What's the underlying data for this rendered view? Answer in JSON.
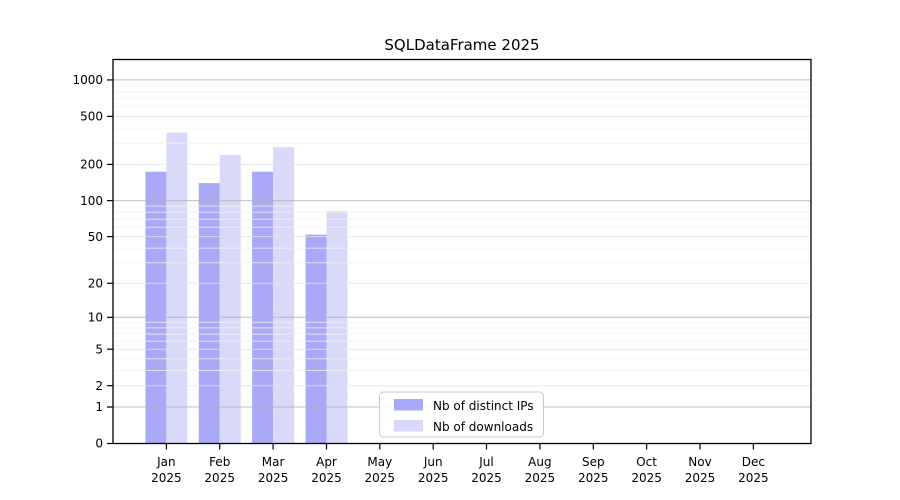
{
  "chart_data": {
    "type": "bar",
    "title": "SQLDataFrame 2025",
    "categories": [
      {
        "month": "Jan",
        "year": "2025"
      },
      {
        "month": "Feb",
        "year": "2025"
      },
      {
        "month": "Mar",
        "year": "2025"
      },
      {
        "month": "Apr",
        "year": "2025"
      },
      {
        "month": "May",
        "year": "2025"
      },
      {
        "month": "Jun",
        "year": "2025"
      },
      {
        "month": "Jul",
        "year": "2025"
      },
      {
        "month": "Aug",
        "year": "2025"
      },
      {
        "month": "Sep",
        "year": "2025"
      },
      {
        "month": "Oct",
        "year": "2025"
      },
      {
        "month": "Nov",
        "year": "2025"
      },
      {
        "month": "Dec",
        "year": "2025"
      }
    ],
    "series": [
      {
        "name": "Nb of distinct IPs",
        "color": "#a9a9f7",
        "values": [
          174,
          140,
          174,
          52,
          0,
          0,
          0,
          0,
          0,
          0,
          0,
          0
        ]
      },
      {
        "name": "Nb of downloads",
        "color": "#d9d9f9",
        "values": [
          366,
          240,
          278,
          82,
          0,
          0,
          0,
          0,
          0,
          0,
          0,
          0
        ]
      }
    ],
    "yscale": "log1p",
    "yticks": [
      0,
      1,
      2,
      5,
      10,
      20,
      50,
      100,
      200,
      500,
      1000
    ],
    "ylim": [
      0,
      1475
    ],
    "grid": true,
    "legend_position": "lower center",
    "colors": {
      "grid_major": "#b0b0b0",
      "grid_mid": "#e3e3e3",
      "grid_minor": "#f1f1f1",
      "spine": "#000000",
      "legend_border": "#c8c8c8"
    }
  }
}
